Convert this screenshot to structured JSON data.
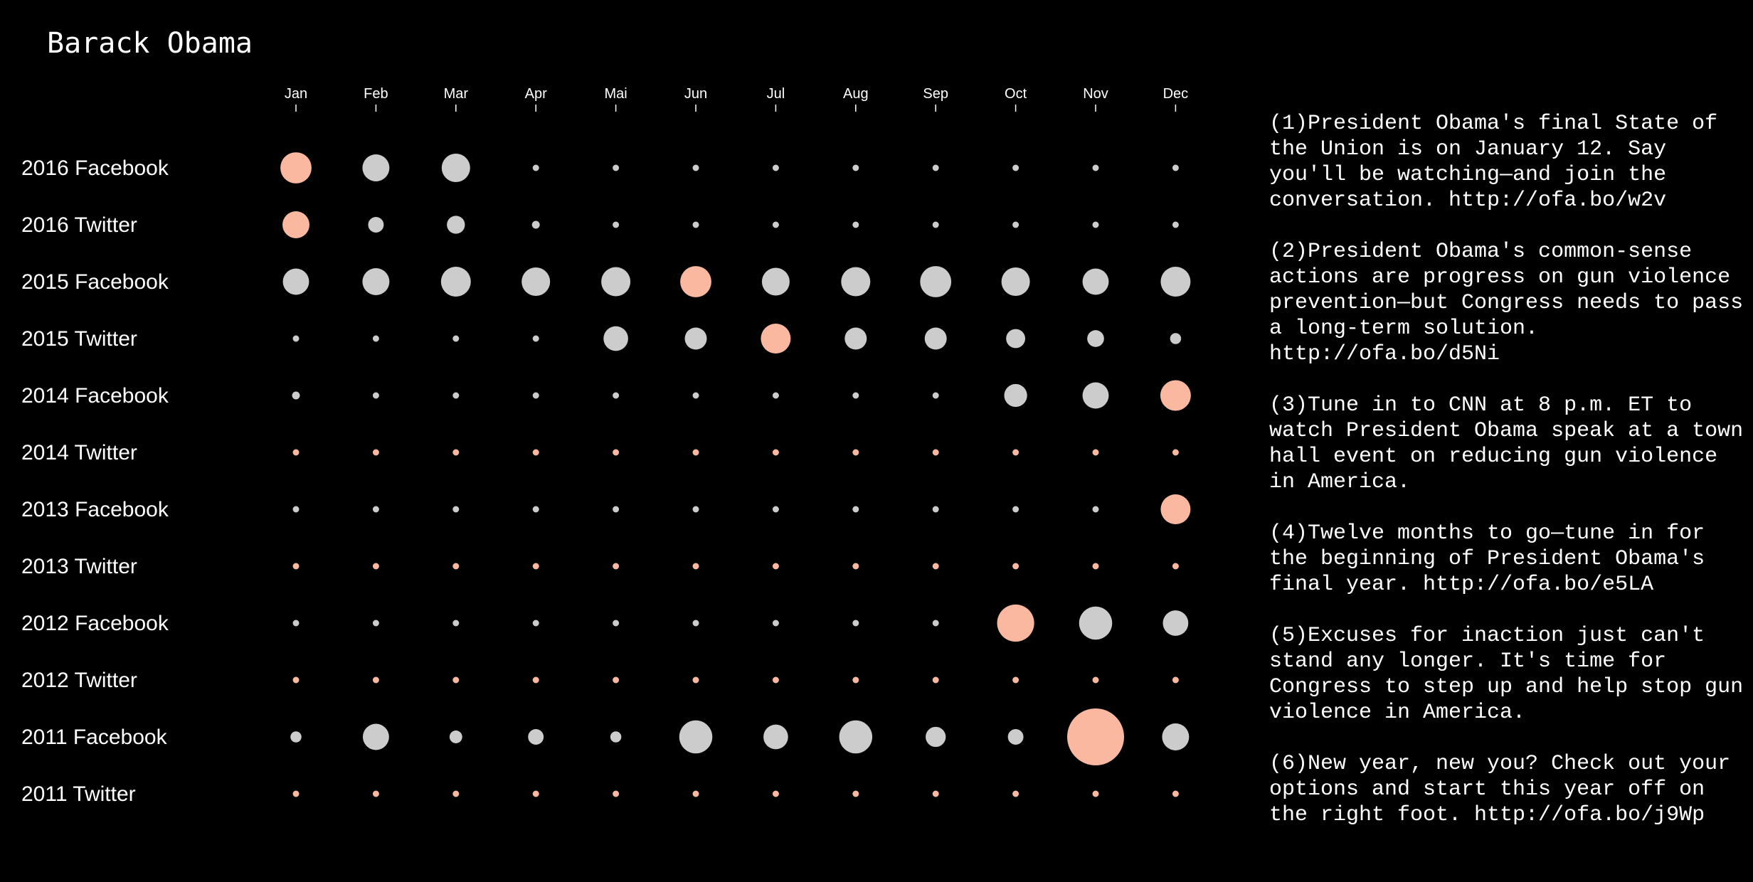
{
  "header": {
    "title": "Barack Obama"
  },
  "colors": {
    "background": "#000000",
    "normal": "#cccccc",
    "highlight": "#fbb8a0",
    "text": "#ffffff"
  },
  "chart_data": {
    "type": "scatter",
    "title": "Barack Obama",
    "months": [
      "Jan",
      "Feb",
      "Mar",
      "Apr",
      "Mai",
      "Jun",
      "Jul",
      "Aug",
      "Sep",
      "Oct",
      "Nov",
      "Dec"
    ],
    "legend": "none",
    "grid": false,
    "rows": [
      {
        "label": "2016 Facebook",
        "values": [
          24,
          18,
          20,
          1,
          1,
          1,
          1,
          1,
          1,
          1,
          1,
          1
        ],
        "highlight": 0
      },
      {
        "label": "2016 Twitter",
        "values": [
          18,
          6,
          8,
          1.5,
          1,
          1,
          1,
          1,
          1,
          1,
          1,
          1
        ],
        "highlight": 0
      },
      {
        "label": "2015 Facebook",
        "values": [
          17,
          18,
          22,
          20,
          21,
          24,
          19,
          21,
          24,
          20,
          17,
          22
        ],
        "highlight": 5
      },
      {
        "label": "2015 Twitter",
        "values": [
          1,
          1,
          1,
          1,
          15,
          12,
          22,
          12,
          12,
          9,
          7,
          3
        ],
        "highlight": 6
      },
      {
        "label": "2014 Facebook",
        "values": [
          1.5,
          1,
          1,
          1,
          1,
          1,
          1,
          1,
          1,
          13,
          17,
          23
        ],
        "highlight": 11
      },
      {
        "label": "2014 Twitter",
        "values": [
          1,
          1,
          1,
          1,
          1,
          1,
          1,
          1,
          1,
          1,
          1,
          1
        ],
        "highlight": -1
      },
      {
        "label": "2013 Facebook",
        "values": [
          1,
          1,
          1,
          1,
          1,
          1,
          1,
          1,
          1,
          1,
          1,
          22
        ],
        "highlight": 11
      },
      {
        "label": "2013 Twitter",
        "values": [
          1,
          1,
          1,
          1,
          1,
          1,
          1,
          1,
          1,
          1,
          1,
          1
        ],
        "highlight": -1
      },
      {
        "label": "2012 Facebook",
        "values": [
          1,
          1,
          1,
          1,
          1,
          1,
          1,
          1,
          1,
          34,
          27,
          16
        ],
        "highlight": 9
      },
      {
        "label": "2012 Twitter",
        "values": [
          1,
          1,
          1,
          1,
          1,
          1,
          1,
          1,
          1,
          1,
          1,
          1
        ],
        "highlight": -1
      },
      {
        "label": "2011 Facebook",
        "values": [
          3,
          17,
          4,
          6,
          3,
          27,
          15,
          27,
          10,
          6,
          80,
          18
        ],
        "highlight": 10
      },
      {
        "label": "2011 Twitter",
        "values": [
          1,
          1,
          1,
          1,
          1,
          1,
          1,
          1,
          1,
          1,
          1,
          1
        ],
        "highlight": -1
      }
    ]
  },
  "notes": [
    "(1)President Obama's final State of the Union is on January 12. Say you'll be watching—and join the conversation. http://ofa.bo/w2v",
    "(2)President Obama's common-sense actions are progress on gun violence prevention—but Congress needs to pass a long-term solution. http://ofa.bo/d5Ni",
    "(3)Tune in to CNN at 8 p.m. ET to watch President Obama speak at a town hall event on reducing gun violence in America.",
    "(4)Twelve months to go—tune in for the beginning of President Obama's final year. http://ofa.bo/e5LA",
    "(5)Excuses for inaction just can't stand any longer. It's time for Congress to step up and help stop gun violence in America.",
    "(6)New year, new you? Check out your options and start this year off on the right foot. http://ofa.bo/j9Wp"
  ]
}
